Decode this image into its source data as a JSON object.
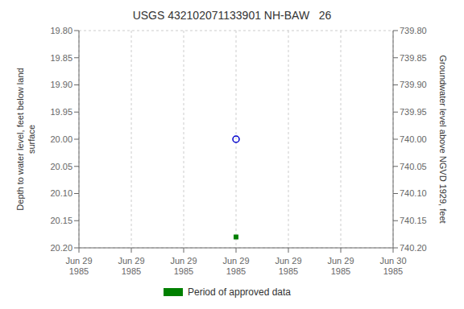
{
  "chart_data": {
    "type": "scatter",
    "title": "USGS 432102071133901 NH-BAW   26",
    "y_label": "Depth to water level, feet below land\nsurface",
    "y2_label": "Groundwater level above NGVD 1929, feet",
    "categories": [
      "Jun 29\n1985",
      "Jun 29\n1985",
      "Jun 29\n1985",
      "Jun 29\n1985",
      "Jun 29\n1985",
      "Jun 29\n1985",
      "Jun 30\n1985"
    ],
    "ylim": [
      20.2,
      19.8
    ],
    "yticks": [
      {
        "value": 19.8,
        "label": "19.80"
      },
      {
        "value": 19.85,
        "label": "19.85"
      },
      {
        "value": 19.9,
        "label": "19.90"
      },
      {
        "value": 19.95,
        "label": "19.95"
      },
      {
        "value": 20.0,
        "label": "20.00"
      },
      {
        "value": 20.05,
        "label": "20.05"
      },
      {
        "value": 20.1,
        "label": "20.10"
      },
      {
        "value": 20.15,
        "label": "20.15"
      },
      {
        "value": 20.2,
        "label": "20.20"
      }
    ],
    "y2lim": [
      740.2,
      739.8
    ],
    "y2ticks": [
      {
        "value": 740.2,
        "label": "740.20"
      },
      {
        "value": 740.15,
        "label": "740.15"
      },
      {
        "value": 740.1,
        "label": "740.10"
      },
      {
        "value": 740.05,
        "label": "740.05"
      },
      {
        "value": 740.0,
        "label": "740.00"
      },
      {
        "value": 739.95,
        "label": "739.95"
      },
      {
        "value": 739.9,
        "label": "739.90"
      },
      {
        "value": 739.85,
        "label": "739.85"
      },
      {
        "value": 739.8,
        "label": "739.80"
      }
    ],
    "grid": true,
    "series": [
      {
        "color": "#0000cc",
        "marker": "circle",
        "values": [
          null,
          null,
          null,
          20.0,
          null,
          null,
          null
        ]
      },
      {
        "name": "Period of approved data",
        "color": "#008000",
        "marker": "square",
        "values": [
          null,
          null,
          null,
          20.18,
          null,
          null,
          null
        ]
      }
    ]
  }
}
